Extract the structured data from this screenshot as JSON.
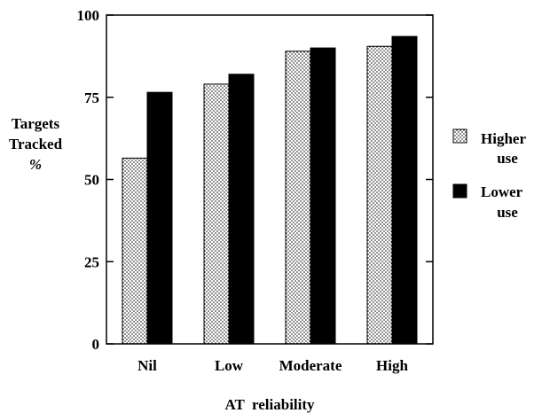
{
  "chart_data": {
    "type": "bar",
    "title": "",
    "xlabel": "AT  reliability",
    "ylabel_lines": [
      "Targets",
      "Tracked",
      "%"
    ],
    "categories": [
      "Nil",
      "Low",
      "Moderate",
      "High"
    ],
    "ylim": [
      0,
      100
    ],
    "yticks": [
      0,
      25,
      50,
      75,
      100
    ],
    "grid": false,
    "legend_position": "right",
    "series": [
      {
        "name_lines": [
          "Higher",
          "use"
        ],
        "pattern": "dotted",
        "values": [
          56.5,
          79,
          89,
          90.5
        ]
      },
      {
        "name_lines": [
          "Lower",
          "use"
        ],
        "pattern": "solid",
        "values": [
          76.5,
          82,
          90,
          93.5
        ]
      }
    ]
  }
}
